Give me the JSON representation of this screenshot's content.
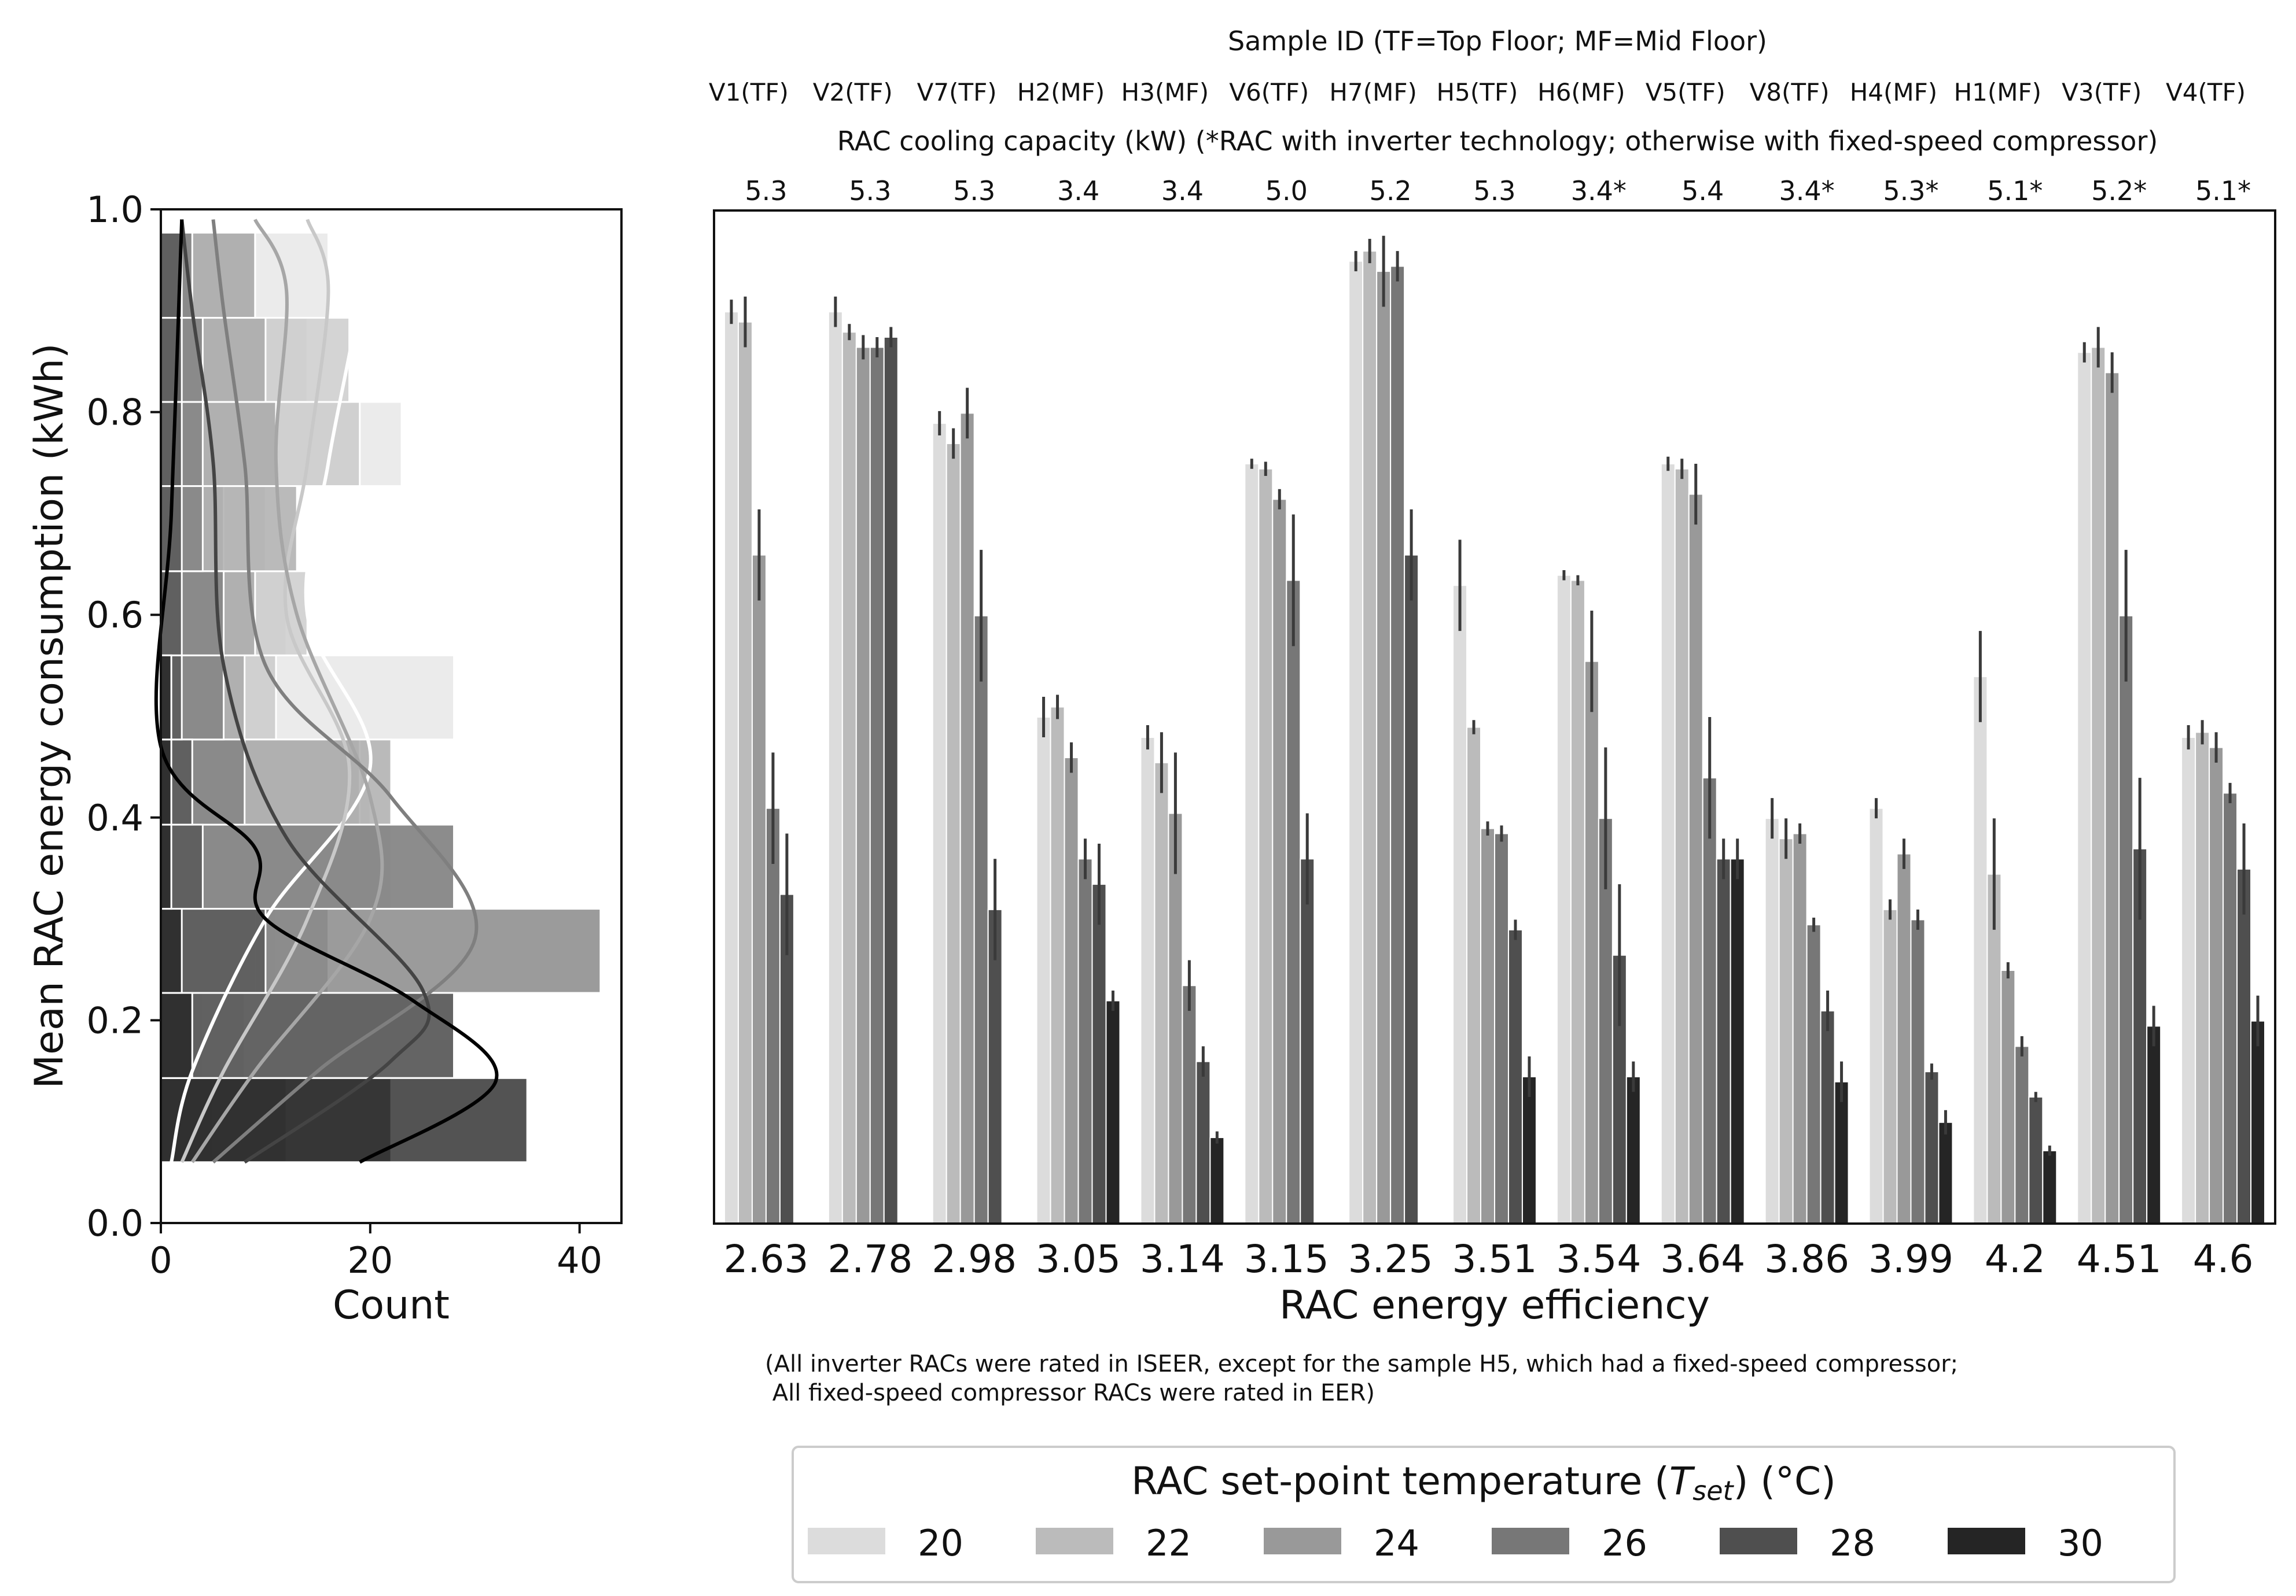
{
  "chart_data": [
    {
      "type": "histogram",
      "orientation": "horizontal",
      "ylabel": "Mean RAC energy consumption (kWh)",
      "xlabel": "Count",
      "xlim": [
        0,
        44
      ],
      "ylim": [
        0,
        1.0
      ],
      "xticks": [
        "0",
        "20",
        "40"
      ],
      "yticks": [
        "0.0",
        "0.2",
        "0.4",
        "0.6",
        "0.8",
        "1.0"
      ],
      "bin_edges": [
        0.06,
        0.143,
        0.227,
        0.31,
        0.393,
        0.477,
        0.56,
        0.643,
        0.727,
        0.81,
        0.893,
        0.977
      ],
      "series": [
        {
          "name": "20",
          "color": "#e6e6e6",
          "counts": [
            3,
            4,
            11,
            16,
            20,
            28,
            12,
            10,
            23,
            14,
            16
          ]
        },
        {
          "name": "22",
          "color": "#c8c8c8",
          "counts": [
            2,
            4,
            9,
            22,
            19,
            11,
            14,
            6,
            19,
            18,
            9
          ]
        },
        {
          "name": "24",
          "color": "#a6a6a6",
          "counts": [
            5,
            8,
            16,
            28,
            22,
            8,
            9,
            13,
            11,
            10,
            9
          ]
        },
        {
          "name": "26",
          "color": "#7f7f7f",
          "counts": [
            12,
            28,
            42,
            28,
            8,
            6,
            6,
            4,
            4,
            4,
            3
          ]
        },
        {
          "name": "28",
          "color": "#555555",
          "counts": [
            22,
            28,
            10,
            4,
            3,
            2,
            2,
            2,
            2,
            2,
            2
          ]
        },
        {
          "name": "30",
          "color": "#222222",
          "counts": [
            35,
            3,
            2,
            1,
            1,
            1,
            0,
            0,
            0,
            0,
            0
          ]
        }
      ],
      "kde_curves": [
        {
          "name": "20",
          "color": "#ffffff",
          "points": [
            [
              1,
              0.06
            ],
            [
              3,
              0.15
            ],
            [
              10,
              0.3
            ],
            [
              20,
              0.45
            ],
            [
              14,
              0.6
            ],
            [
              16,
              0.75
            ],
            [
              19,
              0.92
            ],
            [
              18,
              0.99
            ]
          ]
        },
        {
          "name": "22",
          "color": "#c8c8c8",
          "points": [
            [
              2,
              0.06
            ],
            [
              6,
              0.15
            ],
            [
              14,
              0.3
            ],
            [
              18,
              0.45
            ],
            [
              12,
              0.6
            ],
            [
              14,
              0.75
            ],
            [
              16,
              0.92
            ],
            [
              14,
              0.99
            ]
          ]
        },
        {
          "name": "24",
          "color": "#a6a6a6",
          "points": [
            [
              3,
              0.06
            ],
            [
              9,
              0.15
            ],
            [
              20,
              0.3
            ],
            [
              20,
              0.42
            ],
            [
              13,
              0.6
            ],
            [
              11,
              0.75
            ],
            [
              12,
              0.92
            ],
            [
              9,
              0.99
            ]
          ]
        },
        {
          "name": "26",
          "color": "#7f7f7f",
          "points": [
            [
              5,
              0.06
            ],
            [
              15,
              0.15
            ],
            [
              30,
              0.28
            ],
            [
              22,
              0.42
            ],
            [
              10,
              0.55
            ],
            [
              8,
              0.75
            ],
            [
              6,
              0.9
            ],
            [
              5,
              0.99
            ]
          ]
        },
        {
          "name": "28",
          "color": "#444444",
          "points": [
            [
              8,
              0.06
            ],
            [
              22,
              0.16
            ],
            [
              25,
              0.23
            ],
            [
              12,
              0.38
            ],
            [
              6,
              0.55
            ],
            [
              5,
              0.75
            ],
            [
              3,
              0.9
            ],
            [
              2,
              0.99
            ]
          ]
        },
        {
          "name": "30",
          "color": "#000000",
          "points": [
            [
              19,
              0.06
            ],
            [
              32,
              0.14
            ],
            [
              24,
              0.22
            ],
            [
              10,
              0.3
            ],
            [
              9,
              0.37
            ],
            [
              0,
              0.47
            ],
            [
              1,
              0.7
            ],
            [
              2,
              0.99
            ]
          ]
        }
      ]
    },
    {
      "type": "bar",
      "title": "Sample ID (TF=Top Floor; MF=Mid Floor)",
      "secondary_title": "RAC cooling capacity (kW) (*RAC with inverter technology; otherwise with fixed-speed compressor)",
      "xlabel": "RAC energy efficiency",
      "ylim": [
        0,
        1.0
      ],
      "categories": [
        "2.63",
        "2.78",
        "2.98",
        "3.05",
        "3.14",
        "3.15",
        "3.25",
        "3.51",
        "3.54",
        "3.64",
        "3.86",
        "3.99",
        "4.2",
        "4.51",
        "4.6"
      ],
      "sample_ids": [
        "V1(TF)",
        "V2(TF)",
        "V7(TF)",
        "H2(MF)",
        "H3(MF)",
        "V6(TF)",
        "H7(MF)",
        "H5(TF)",
        "H6(MF)",
        "V5(TF)",
        "V8(TF)",
        "H4(MF)",
        "H1(MF)",
        "V3(TF)",
        "V4(TF)"
      ],
      "capacities": [
        "5.3",
        "5.3",
        "5.3",
        "3.4",
        "3.4",
        "5.0",
        "5.2",
        "5.3",
        "3.4*",
        "5.4",
        "3.4*",
        "5.3*",
        "5.1*",
        "5.2*",
        "5.1*"
      ],
      "series": [
        {
          "name": "20",
          "color": "#dcdcdc",
          "values": [
            0.9,
            0.9,
            0.79,
            0.5,
            0.48,
            0.75,
            0.95,
            0.63,
            0.64,
            0.75,
            0.4,
            0.41,
            0.54,
            0.86,
            0.48
          ]
        },
        {
          "name": "22",
          "color": "#bbbbbb",
          "values": [
            0.89,
            0.88,
            0.77,
            0.51,
            0.455,
            0.745,
            0.96,
            0.49,
            0.635,
            0.745,
            0.38,
            0.31,
            0.345,
            0.865,
            0.485
          ]
        },
        {
          "name": "24",
          "color": "#999999",
          "values": [
            0.66,
            0.865,
            0.8,
            0.46,
            0.405,
            0.715,
            0.94,
            0.39,
            0.555,
            0.72,
            0.385,
            0.365,
            0.25,
            0.84,
            0.47
          ]
        },
        {
          "name": "26",
          "color": "#777777",
          "values": [
            0.41,
            0.865,
            0.6,
            0.36,
            0.235,
            0.635,
            0.945,
            0.385,
            0.4,
            0.44,
            0.295,
            0.3,
            0.175,
            0.6,
            0.425
          ]
        },
        {
          "name": "28",
          "color": "#4f4f4f",
          "values": [
            0.325,
            0.875,
            0.31,
            0.335,
            0.16,
            0.36,
            0.66,
            0.29,
            0.265,
            0.36,
            0.21,
            0.15,
            0.125,
            0.37,
            0.35
          ]
        },
        {
          "name": "30",
          "color": "#252525",
          "values": [
            null,
            null,
            null,
            0.22,
            0.085,
            null,
            null,
            0.145,
            0.145,
            0.36,
            0.14,
            0.1,
            0.072,
            0.195,
            0.2
          ]
        }
      ],
      "error_half": [
        [
          0.012,
          0.015,
          0.012,
          0.02,
          0.012,
          0.005,
          0.01,
          0.045,
          0.005,
          0.007,
          0.02,
          0.01,
          0.045,
          0.01,
          0.012
        ],
        [
          0.025,
          0.008,
          0.015,
          0.012,
          0.03,
          0.007,
          0.012,
          0.007,
          0.005,
          0.01,
          0.02,
          0.01,
          0.055,
          0.02,
          0.012
        ],
        [
          0.045,
          0.012,
          0.025,
          0.015,
          0.06,
          0.01,
          0.035,
          0.007,
          0.05,
          0.03,
          0.01,
          0.015,
          0.008,
          0.02,
          0.015
        ],
        [
          0.055,
          0.01,
          0.065,
          0.02,
          0.025,
          0.065,
          0.015,
          0.008,
          0.07,
          0.06,
          0.007,
          0.01,
          0.01,
          0.065,
          0.01
        ],
        [
          0.06,
          0.01,
          0.05,
          0.04,
          0.015,
          0.045,
          0.045,
          0.01,
          0.07,
          0.02,
          0.02,
          0.008,
          0.005,
          0.07,
          0.045
        ],
        [
          null,
          null,
          null,
          0.01,
          0.006,
          null,
          null,
          0.02,
          0.015,
          0.02,
          0.02,
          0.012,
          0.005,
          0.02,
          0.025
        ]
      ],
      "footnote": [
        "(All inverter RACs were rated in ISEER, except for the sample H5, which had a fixed-speed compressor;",
        " All fixed-speed compressor RACs were rated in EER)"
      ],
      "legend": {
        "title": "RAC set-point temperature (",
        "title_var": "T",
        "title_sub": "set",
        "title_end": ") (°C)",
        "placement": "bottom-center",
        "labels": [
          "20",
          "22",
          "24",
          "26",
          "28",
          "30"
        ],
        "colors": [
          "#dcdcdc",
          "#bbbbbb",
          "#999999",
          "#777777",
          "#4f4f4f",
          "#252525"
        ]
      }
    }
  ]
}
